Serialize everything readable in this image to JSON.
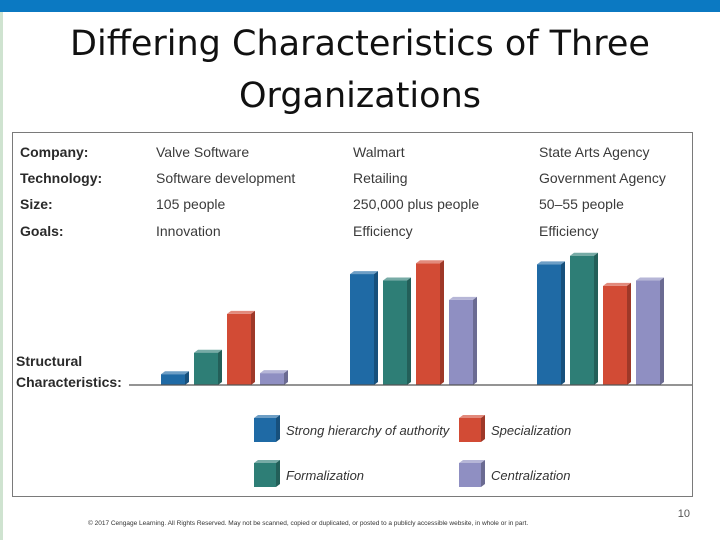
{
  "slide": {
    "title_line1": "Differing Characteristics of Three",
    "title_line2": "Organizations",
    "footer": "© 2017 Cengage Learning. All Rights Reserved. May not be scanned, copied or duplicated, or posted to a publicly accessible website, in whole or in part.",
    "page_number": "10"
  },
  "chart_data": {
    "type": "bar",
    "row_labels": [
      "Company:",
      "Technology:",
      "Size:",
      "Goals:"
    ],
    "y_axis_label": [
      "Structural",
      "Characteristics:"
    ],
    "categories": [
      "Valve Software",
      "Walmart",
      "State Arts Agency"
    ],
    "attributes": [
      [
        "Valve Software",
        "Software development",
        "105 people",
        "Innovation"
      ],
      [
        "Walmart",
        "Retailing",
        "250,000 plus people",
        "Efficiency"
      ],
      [
        "State Arts Agency",
        "Government Agency",
        "50–55 people",
        "Efficiency"
      ]
    ],
    "series": [
      {
        "name": "Strong hierarchy of authority",
        "color": "#1f6aa5",
        "values": [
          10,
          103,
          112
        ]
      },
      {
        "name": "Formalization",
        "color": "#2e7e76",
        "values": [
          30,
          97,
          120
        ]
      },
      {
        "name": "Specialization",
        "color": "#d24b35",
        "values": [
          66,
          113,
          92
        ]
      },
      {
        "name": "Centralization",
        "color": "#8f8fc2",
        "values": [
          11,
          79,
          97
        ]
      }
    ],
    "value_scale": "relative (no numeric axis printed)",
    "ylim": [
      0,
      130
    ],
    "legend_position": "bottom",
    "grid": false
  }
}
